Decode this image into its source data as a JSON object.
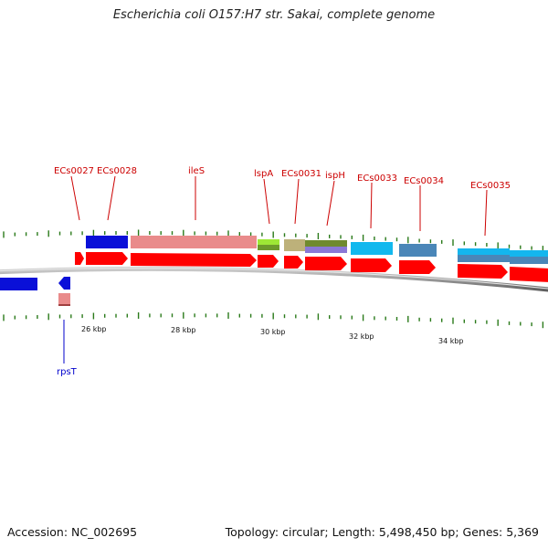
{
  "title": "Escherichia coli O157:H7 str. Sakai, complete genome",
  "footer": {
    "accession": "Accession: NC_002695",
    "summary": "Topology: circular; Length: 5,498,450 bp; Genes: 5,369"
  },
  "colors": {
    "gene_label_forward": "#cc0000",
    "gene_label_reverse": "#0000cc",
    "cds_arrow": "#ff0000",
    "backbone": "#888888",
    "gc_tick": "#2a7a1a"
  },
  "ruler_labels": [
    "26 kbp",
    "28 kbp",
    "30 kbp",
    "32 kbp",
    "34 kbp"
  ],
  "genes_forward": [
    "ECs0027",
    "ECs0028",
    "ileS",
    "lspA",
    "ECs0031",
    "ispH",
    "ECs0033",
    "ECs0034",
    "ECs0035"
  ],
  "genes_reverse": [
    "rpsT"
  ]
}
